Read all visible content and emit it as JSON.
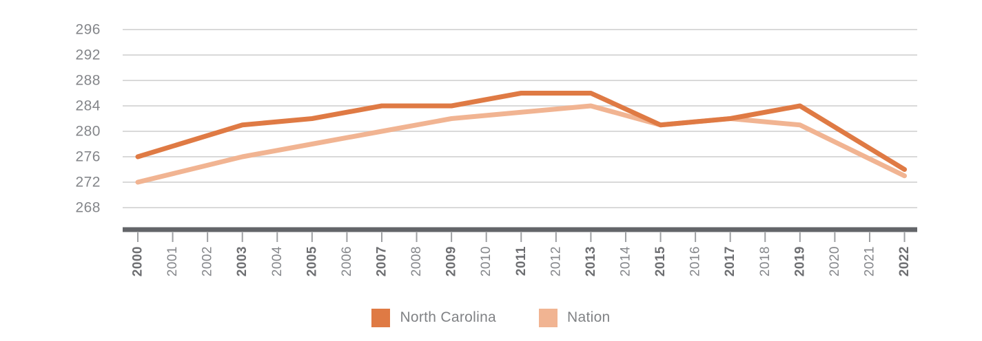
{
  "chart_data": {
    "type": "line",
    "title": "",
    "xlabel": "",
    "ylabel": "",
    "grid": true,
    "legend_position": "bottom",
    "ylim": [
      268,
      296
    ],
    "y_ticks": [
      296,
      292,
      288,
      284,
      280,
      276,
      272,
      268
    ],
    "x_tick_labels": [
      "2000",
      "2001",
      "2002",
      "2003",
      "2004",
      "2005",
      "2006",
      "2007",
      "2008",
      "2009",
      "2010",
      "2011",
      "2012",
      "2013",
      "2014",
      "2015",
      "2016",
      "2017",
      "2018",
      "2019",
      "2020",
      "2021",
      "2022"
    ],
    "bold_x_ticks": [
      "2000",
      "2003",
      "2005",
      "2007",
      "2009",
      "2011",
      "2013",
      "2015",
      "2017",
      "2019",
      "2022"
    ],
    "x": [
      2000,
      2003,
      2005,
      2007,
      2009,
      2011,
      2013,
      2015,
      2017,
      2019,
      2022
    ],
    "series": [
      {
        "name": "North Carolina",
        "color": "#DF7A44",
        "values": [
          276,
          281,
          282,
          284,
          284,
          286,
          286,
          281,
          282,
          284,
          274
        ]
      },
      {
        "name": "Nation",
        "color": "#F1B492",
        "values": [
          272,
          276,
          278,
          280,
          282,
          283,
          284,
          281,
          282,
          281,
          273
        ]
      }
    ]
  },
  "colors": {
    "gridline": "#D9D9D9",
    "axis_line": "#636569",
    "tick_mark": "#9D9FA2",
    "axis_label": "#84868A",
    "bold_axis_label": "#6D6E71",
    "background": "#FFFFFF"
  }
}
